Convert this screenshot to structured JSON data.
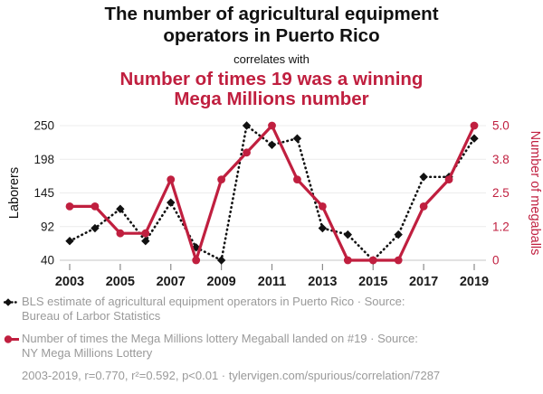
{
  "header": {
    "title_lines": [
      "The number of agricultural equipment",
      "operators in Puerto Rico"
    ],
    "connector": "correlates with",
    "secondary_title_lines": [
      "Number of times 19 was a winning",
      "Mega Millions number"
    ]
  },
  "chart_data": {
    "type": "line",
    "x": [
      2003,
      2004,
      2005,
      2006,
      2007,
      2008,
      2009,
      2010,
      2011,
      2012,
      2013,
      2014,
      2015,
      2016,
      2017,
      2018,
      2019
    ],
    "x_tick_labels": [
      "2003",
      "2005",
      "2007",
      "2009",
      "2011",
      "2013",
      "2015",
      "2017",
      "2019"
    ],
    "series": [
      {
        "name": "BLS estimate of agricultural equipment operators in Puerto Rico",
        "axis": "left",
        "color": "#111111",
        "line_style": "dotted",
        "marker": "diamond",
        "values": [
          70,
          90,
          120,
          70,
          130,
          60,
          40,
          250,
          220,
          230,
          90,
          80,
          40,
          80,
          170,
          170,
          230
        ]
      },
      {
        "name": "Number of times the Mega Millions lottery Megaball landed on #19",
        "axis": "right",
        "color": "#c01f3f",
        "line_style": "solid",
        "marker": "circle",
        "values": [
          2,
          2,
          1,
          1,
          3,
          0,
          3,
          4,
          5,
          3,
          2,
          0,
          0,
          0,
          2,
          3,
          5
        ]
      }
    ],
    "left_axis": {
      "label": "Laborers",
      "tick_labels": [
        "40",
        "92",
        "145",
        "198",
        "250"
      ],
      "min": 40,
      "max": 250
    },
    "right_axis": {
      "label": "Number of megaballs",
      "tick_labels": [
        "0",
        "1.2",
        "2.5",
        "3.8",
        "5.0"
      ],
      "min": 0,
      "max": 5
    },
    "grid": "horizontal",
    "legend_position": "bottom"
  },
  "legend": [
    {
      "lines": [
        "BLS estimate of agricultural equipment operators in Puerto Rico · Source:",
        "Bureau of Larbor Statistics"
      ]
    },
    {
      "lines": [
        "Number of times the Mega Millions lottery Megaball landed on #19 · Source:",
        "NY Mega Millions Lottery"
      ]
    }
  ],
  "footer": {
    "stats": "2003-2019, r=0.770, r²=0.592, p<0.01 · tylervigen.com/spurious/correlation/7287"
  },
  "colors": {
    "accent_red": "#c01f3f",
    "series_black": "#111111",
    "legend_text": "#9a9a9a",
    "gridline": "#ececec",
    "axis_line": "#d0d0d0",
    "tick": "#8a8a8a",
    "tick_label": "#1a1a1a"
  }
}
